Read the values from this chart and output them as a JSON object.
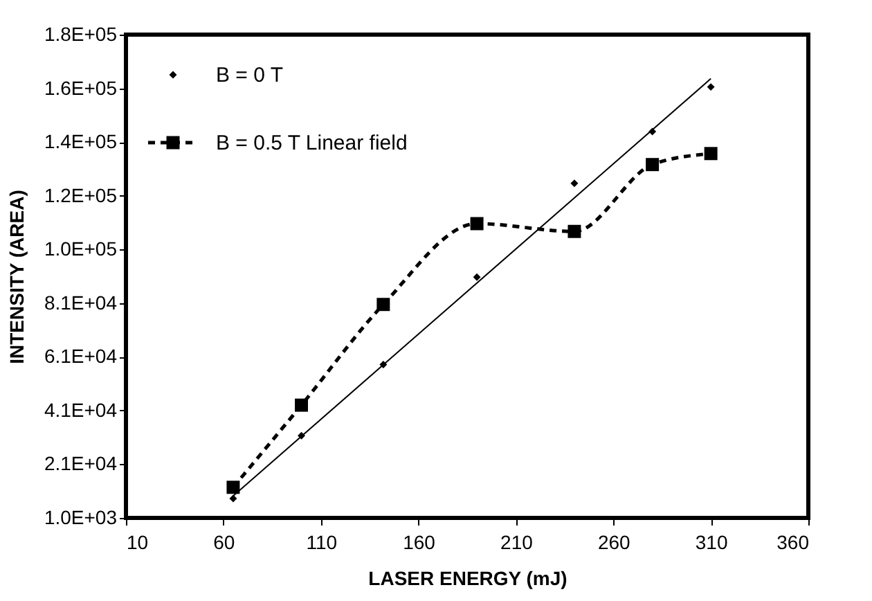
{
  "chart_data": {
    "type": "line",
    "xlabel": "LASER ENERGY (mJ)",
    "ylabel": "INTENSITY (AREA)",
    "xlim": [
      10,
      360
    ],
    "xticks": [
      10,
      60,
      110,
      160,
      210,
      260,
      310,
      360
    ],
    "ylim": [
      1000,
      181000
    ],
    "yticks": [
      {
        "value": 1000,
        "label": "1.0E+03"
      },
      {
        "value": 21000,
        "label": "2.1E+04"
      },
      {
        "value": 41000,
        "label": "4.1E+04"
      },
      {
        "value": 61000,
        "label": "6.1E+04"
      },
      {
        "value": 81000,
        "label": "8.1E+04"
      },
      {
        "value": 101000,
        "label": "1.0E+05"
      },
      {
        "value": 121000,
        "label": "1.2E+05"
      },
      {
        "value": 141000,
        "label": "1.4E+05"
      },
      {
        "value": 161000,
        "label": "1.6E+05"
      },
      {
        "value": 181000,
        "label": "1.8E+05"
      }
    ],
    "grid": false,
    "legend": "top left",
    "series": [
      {
        "name": "B = 0 T",
        "type": "scatter",
        "marker": "diamond",
        "color": "#000000",
        "x": [
          65,
          100,
          142,
          190,
          240,
          280,
          310
        ],
        "values": [
          8200,
          31600,
          58100,
          90700,
          125600,
          144900,
          161500
        ]
      },
      {
        "name": "B = 0.5 T Linear field",
        "marker": "square",
        "line_style": "dashed",
        "color": "#000000",
        "x": [
          65,
          100,
          142,
          190,
          240,
          280,
          310
        ],
        "values": [
          12400,
          43000,
          80500,
          110600,
          107700,
          132600,
          136700
        ]
      },
      {
        "marker": "none",
        "line_style": "solid",
        "color": "#000000",
        "x": [
          65,
          310
        ],
        "values": [
          9200,
          164600
        ]
      }
    ]
  }
}
